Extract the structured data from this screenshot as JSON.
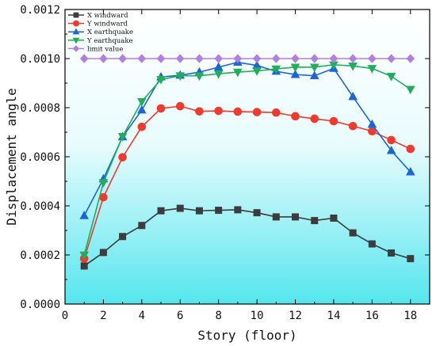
{
  "chart_data": {
    "type": "line",
    "xlabel": "Story (floor)",
    "ylabel": "Displacement angle",
    "xlim": [
      0,
      19
    ],
    "ylim": [
      0,
      0.0012
    ],
    "xticks": [
      0,
      2,
      4,
      6,
      8,
      10,
      12,
      14,
      16,
      18
    ],
    "yticks": [
      0,
      0.0002,
      0.0004,
      0.0006,
      0.0008,
      0.001,
      0.0012
    ],
    "ytick_labels": [
      "0.0000",
      "0.0002",
      "0.0004",
      "0.0006",
      "0.0008",
      "0.0010",
      "0.0012"
    ],
    "legend_position": "top-left",
    "grid": false,
    "background": "cyan-to-white vertical gradient",
    "x": [
      1,
      2,
      3,
      4,
      5,
      6,
      7,
      8,
      9,
      10,
      11,
      12,
      13,
      14,
      15,
      16,
      17,
      18
    ],
    "series": [
      {
        "name": "X windward",
        "color": "#3c3c3c",
        "marker": "square",
        "values": [
          0.000155,
          0.00021,
          0.000275,
          0.00032,
          0.00038,
          0.00039,
          0.00038,
          0.000382,
          0.000384,
          0.000372,
          0.000355,
          0.000355,
          0.00034,
          0.00035,
          0.00029,
          0.000245,
          0.000208,
          0.000185
        ]
      },
      {
        "name": "Y windward",
        "color": "#f03a2e",
        "marker": "circle",
        "values": [
          0.000185,
          0.000435,
          0.000598,
          0.000722,
          0.000797,
          0.000806,
          0.000785,
          0.000787,
          0.000784,
          0.000782,
          0.00078,
          0.000765,
          0.000755,
          0.000745,
          0.000725,
          0.000704,
          0.000668,
          0.000632
        ]
      },
      {
        "name": "X earthquake",
        "color": "#1866d9",
        "marker": "triangle-up",
        "values": [
          0.00036,
          0.00051,
          0.000681,
          0.00079,
          0.000925,
          0.000932,
          0.000945,
          0.000965,
          0.000985,
          0.000972,
          0.000948,
          0.000935,
          0.00093,
          0.00096,
          0.000845,
          0.000732,
          0.000625,
          0.000538
        ]
      },
      {
        "name": "Y earthquake",
        "color": "#22ad5b",
        "marker": "triangle-down",
        "values": [
          0.0002,
          0.000495,
          0.000683,
          0.000825,
          0.000915,
          0.00093,
          0.00093,
          0.000938,
          0.000945,
          0.00095,
          0.000958,
          0.000965,
          0.000965,
          0.000975,
          0.00097,
          0.00096,
          0.000928,
          0.000875
        ]
      },
      {
        "name": "limit value",
        "color": "#b07fe6",
        "marker": "diamond",
        "values": [
          0.001,
          0.001,
          0.001,
          0.001,
          0.001,
          0.001,
          0.001,
          0.001,
          0.001,
          0.001,
          0.001,
          0.001,
          0.001,
          0.001,
          0.001,
          0.001,
          0.001,
          0.001
        ]
      }
    ]
  }
}
